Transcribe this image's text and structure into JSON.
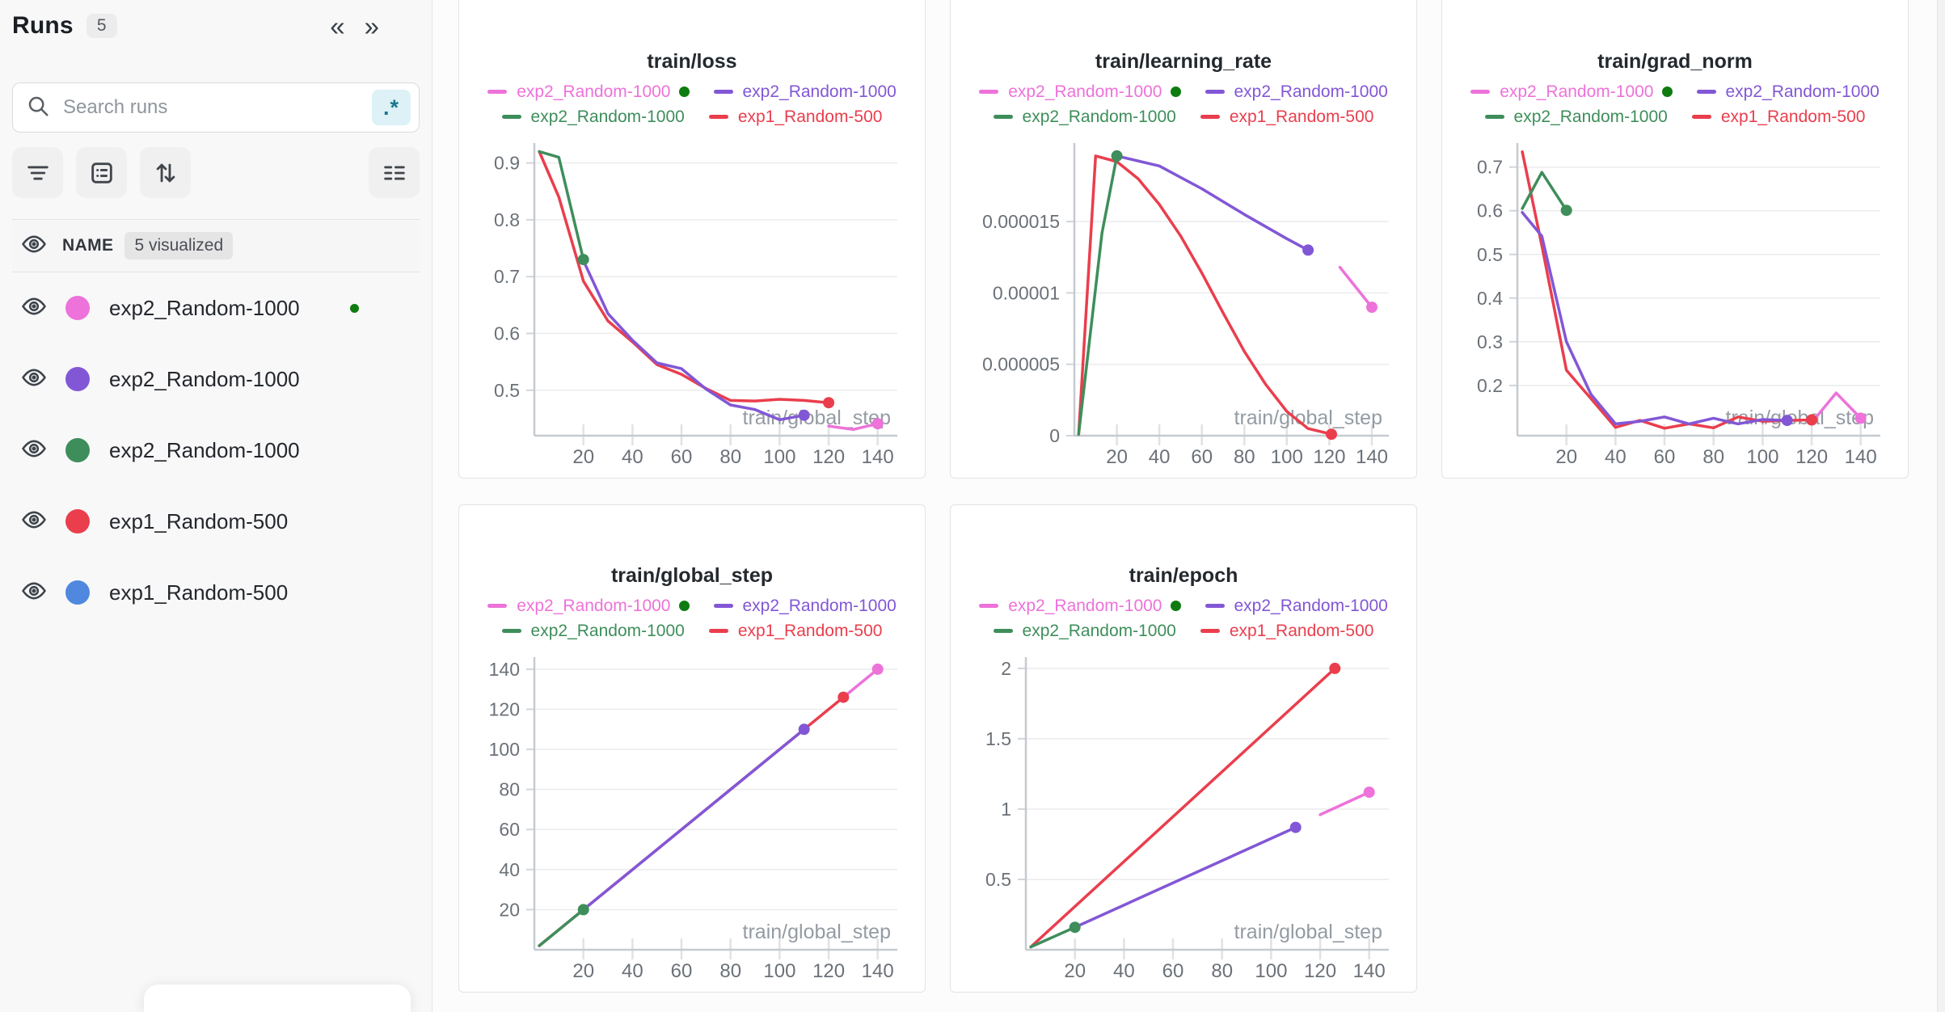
{
  "colors": {
    "pink": "#ED72D9",
    "purple": "#8257D6",
    "green": "#3E8E5B",
    "red": "#EA3E4D",
    "blue": "#4F88DE",
    "status_green": "#0E7C10"
  },
  "sidebar": {
    "title": "Runs",
    "count_badge": "5",
    "collapse_glyph": "«",
    "expand_glyph": "»",
    "search_placeholder": "Search runs",
    "regex_label": ".*",
    "list_header": {
      "name_label": "NAME",
      "visualized_badge": "5 visualized"
    },
    "runs": [
      {
        "name": "exp2_Random-1000",
        "color_key": "pink",
        "running": true
      },
      {
        "name": "exp2_Random-1000",
        "color_key": "purple",
        "running": false
      },
      {
        "name": "exp2_Random-1000",
        "color_key": "green",
        "running": false
      },
      {
        "name": "exp1_Random-500",
        "color_key": "red",
        "running": false
      },
      {
        "name": "exp1_Random-500",
        "color_key": "blue",
        "running": false
      }
    ]
  },
  "legend": {
    "entries": [
      {
        "label": "exp2_Random-1000",
        "color_key": "pink",
        "status_dot": true
      },
      {
        "label": "exp2_Random-1000",
        "color_key": "purple",
        "status_dot": false
      },
      {
        "label": "exp2_Random-1000",
        "color_key": "green",
        "status_dot": false
      },
      {
        "label": "exp1_Random-500",
        "color_key": "red",
        "status_dot": false
      }
    ]
  },
  "chart_data": [
    {
      "type": "line",
      "title": "train/loss",
      "xlabel": "train/global_step",
      "xlim": [
        0,
        148
      ],
      "ylim": [
        0.42,
        0.935
      ],
      "x_ticks": [
        20,
        40,
        60,
        80,
        100,
        120,
        140
      ],
      "y_ticks": [
        [
          0.5,
          "0.5"
        ],
        [
          0.6,
          "0.6"
        ],
        [
          0.7,
          "0.7"
        ],
        [
          0.8,
          "0.8"
        ],
        [
          0.9,
          "0.9"
        ]
      ],
      "margin_left": 75,
      "grid": true,
      "legend_position": "top",
      "series": [
        {
          "name": "exp1_Random-500",
          "color_key": "red",
          "end_dot": true,
          "points": [
            [
              2,
              0.92
            ],
            [
              10,
              0.84
            ],
            [
              20,
              0.692
            ],
            [
              30,
              0.622
            ],
            [
              40,
              0.585
            ],
            [
              50,
              0.545
            ],
            [
              60,
              0.528
            ],
            [
              70,
              0.503
            ],
            [
              80,
              0.482
            ],
            [
              90,
              0.481
            ],
            [
              100,
              0.484
            ],
            [
              110,
              0.482
            ],
            [
              120,
              0.478
            ]
          ]
        },
        {
          "name": "exp2_Random-1000",
          "color_key": "green",
          "end_dot": true,
          "points": [
            [
              2,
              0.92
            ],
            [
              10,
              0.91
            ],
            [
              20,
              0.73
            ]
          ]
        },
        {
          "name": "exp2_Random-1000",
          "color_key": "purple",
          "end_dot": true,
          "points": [
            [
              20,
              0.728
            ],
            [
              30,
              0.635
            ],
            [
              40,
              0.588
            ],
            [
              50,
              0.548
            ],
            [
              60,
              0.538
            ],
            [
              70,
              0.502
            ],
            [
              80,
              0.474
            ],
            [
              90,
              0.466
            ],
            [
              100,
              0.448
            ],
            [
              110,
              0.456
            ]
          ]
        },
        {
          "name": "exp2_Random-1000",
          "color_key": "pink",
          "end_dot": true,
          "points": [
            [
              120,
              0.437
            ],
            [
              130,
              0.431
            ],
            [
              140,
              0.441
            ]
          ]
        }
      ]
    },
    {
      "type": "line",
      "title": "train/learning_rate",
      "xlabel": "train/global_step",
      "xlim": [
        0,
        148
      ],
      "ylim": [
        0,
        2.05e-05
      ],
      "x_ticks": [
        20,
        40,
        60,
        80,
        100,
        120,
        140
      ],
      "y_ticks": [
        [
          0,
          "0"
        ],
        [
          5e-06,
          "0.000005"
        ],
        [
          1e-05,
          "0.00001"
        ],
        [
          1.5e-05,
          "0.000015"
        ]
      ],
      "margin_left": 135,
      "grid": true,
      "legend_position": "top",
      "series": [
        {
          "name": "exp1_Random-500",
          "color_key": "red",
          "end_dot": true,
          "points": [
            [
              2,
              1e-07
            ],
            [
              10,
              1.96e-05
            ],
            [
              20,
              1.92e-05
            ],
            [
              30,
              1.8e-05
            ],
            [
              40,
              1.62e-05
            ],
            [
              50,
              1.4e-05
            ],
            [
              60,
              1.14e-05
            ],
            [
              70,
              8.6e-06
            ],
            [
              80,
              5.9e-06
            ],
            [
              90,
              3.6e-06
            ],
            [
              100,
              1.7e-06
            ],
            [
              110,
              5e-07
            ],
            [
              121,
              1e-07
            ]
          ]
        },
        {
          "name": "exp2_Random-1000",
          "color_key": "green",
          "end_dot": true,
          "points": [
            [
              2,
              1e-07
            ],
            [
              13,
              1.42e-05
            ],
            [
              20,
              1.96e-05
            ]
          ]
        },
        {
          "name": "exp2_Random-1000",
          "color_key": "purple",
          "end_dot": true,
          "points": [
            [
              20,
              1.96e-05
            ],
            [
              40,
              1.89e-05
            ],
            [
              60,
              1.73e-05
            ],
            [
              80,
              1.55e-05
            ],
            [
              100,
              1.38e-05
            ],
            [
              110,
              1.3e-05
            ]
          ]
        },
        {
          "name": "exp2_Random-1000",
          "color_key": "pink",
          "end_dot": true,
          "points": [
            [
              125,
              1.18e-05
            ],
            [
              140,
              9e-06
            ]
          ]
        }
      ]
    },
    {
      "type": "line",
      "title": "train/grad_norm",
      "xlabel": "train/global_step",
      "xlim": [
        0,
        148
      ],
      "ylim": [
        0.085,
        0.755
      ],
      "x_ticks": [
        20,
        40,
        60,
        80,
        100,
        120,
        140
      ],
      "y_ticks": [
        [
          0.2,
          "0.2"
        ],
        [
          0.3,
          "0.3"
        ],
        [
          0.4,
          "0.4"
        ],
        [
          0.5,
          "0.5"
        ],
        [
          0.6,
          "0.6"
        ],
        [
          0.7,
          "0.7"
        ]
      ],
      "margin_left": 75,
      "grid": true,
      "legend_position": "top",
      "series": [
        {
          "name": "exp1_Random-500",
          "color_key": "red",
          "end_dot": true,
          "points": [
            [
              2,
              0.735
            ],
            [
              10,
              0.52
            ],
            [
              20,
              0.235
            ],
            [
              30,
              0.17
            ],
            [
              40,
              0.104
            ],
            [
              50,
              0.12
            ],
            [
              60,
              0.102
            ],
            [
              70,
              0.112
            ],
            [
              80,
              0.103
            ],
            [
              90,
              0.128
            ],
            [
              100,
              0.118
            ],
            [
              110,
              0.12
            ],
            [
              120,
              0.121
            ]
          ]
        },
        {
          "name": "exp2_Random-1000",
          "color_key": "green",
          "end_dot": true,
          "points": [
            [
              2,
              0.605
            ],
            [
              10,
              0.688
            ],
            [
              20,
              0.601
            ]
          ]
        },
        {
          "name": "exp2_Random-1000",
          "color_key": "purple",
          "end_dot": true,
          "points": [
            [
              2,
              0.596
            ],
            [
              10,
              0.542
            ],
            [
              20,
              0.3
            ],
            [
              30,
              0.18
            ],
            [
              40,
              0.112
            ],
            [
              50,
              0.118
            ],
            [
              60,
              0.128
            ],
            [
              70,
              0.112
            ],
            [
              80,
              0.125
            ],
            [
              90,
              0.112
            ],
            [
              100,
              0.122
            ],
            [
              110,
              0.12
            ]
          ]
        },
        {
          "name": "exp2_Random-1000",
          "color_key": "pink",
          "end_dot": true,
          "points": [
            [
              120,
              0.115
            ],
            [
              130,
              0.183
            ],
            [
              140,
              0.125
            ]
          ]
        }
      ]
    },
    {
      "type": "line",
      "title": "train/global_step",
      "xlabel": "train/global_step",
      "xlim": [
        0,
        148
      ],
      "ylim": [
        0,
        146
      ],
      "x_ticks": [
        20,
        40,
        60,
        80,
        100,
        120,
        140
      ],
      "y_ticks": [
        [
          20,
          "20"
        ],
        [
          40,
          "40"
        ],
        [
          60,
          "60"
        ],
        [
          80,
          "80"
        ],
        [
          100,
          "100"
        ],
        [
          120,
          "120"
        ],
        [
          140,
          "140"
        ]
      ],
      "margin_left": 75,
      "grid": true,
      "legend_position": "top",
      "series": [
        {
          "name": "exp1_Random-500",
          "color_key": "red",
          "end_dot": true,
          "points": [
            [
              2,
              2
            ],
            [
              126,
              126
            ]
          ]
        },
        {
          "name": "exp2_Random-1000",
          "color_key": "green",
          "end_dot": true,
          "points": [
            [
              2,
              2
            ],
            [
              20,
              20
            ]
          ]
        },
        {
          "name": "exp2_Random-1000",
          "color_key": "purple",
          "end_dot": true,
          "points": [
            [
              20,
              20
            ],
            [
              110,
              110
            ]
          ]
        },
        {
          "name": "exp2_Random-1000",
          "color_key": "pink",
          "end_dot": true,
          "points": [
            [
              126,
              126
            ],
            [
              140,
              140
            ]
          ]
        }
      ]
    },
    {
      "type": "line",
      "title": "train/epoch",
      "xlabel": "train/global_step",
      "xlim": [
        0,
        148
      ],
      "ylim": [
        0,
        2.08
      ],
      "x_ticks": [
        20,
        40,
        60,
        80,
        100,
        120,
        140
      ],
      "y_ticks": [
        [
          0.5,
          "0.5"
        ],
        [
          1,
          "1"
        ],
        [
          1.5,
          "1.5"
        ],
        [
          2,
          "2"
        ]
      ],
      "margin_left": 75,
      "grid": true,
      "legend_position": "top",
      "series": [
        {
          "name": "exp1_Random-500",
          "color_key": "red",
          "end_dot": true,
          "points": [
            [
              2,
              0.02
            ],
            [
              126,
              2.0
            ]
          ]
        },
        {
          "name": "exp2_Random-1000",
          "color_key": "green",
          "end_dot": true,
          "points": [
            [
              2,
              0.02
            ],
            [
              20,
              0.16
            ]
          ]
        },
        {
          "name": "exp2_Random-1000",
          "color_key": "purple",
          "end_dot": true,
          "points": [
            [
              20,
              0.16
            ],
            [
              110,
              0.87
            ]
          ]
        },
        {
          "name": "exp2_Random-1000",
          "color_key": "pink",
          "end_dot": true,
          "points": [
            [
              120,
              0.96
            ],
            [
              140,
              1.12
            ]
          ]
        }
      ]
    }
  ]
}
